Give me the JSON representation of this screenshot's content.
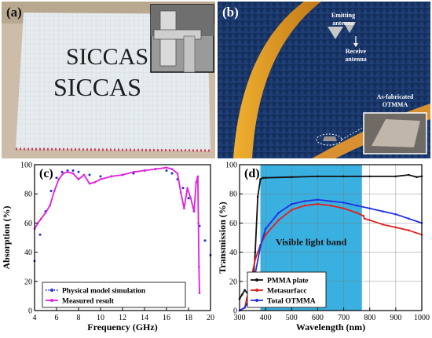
{
  "panel_a": {
    "tag": "(a)",
    "text_line1": "SICCAS",
    "text_line2": "SICCAS",
    "colors": {
      "background": "#d8c8b8",
      "sample": "#e8ecef",
      "grid": "#c8d4dc",
      "text": "#1e1e1e",
      "ruler": "#d04060"
    },
    "inset_icon": "caliper-photo"
  },
  "panel_b": {
    "tag": "(b)",
    "emit_label": [
      "Emitting",
      "antenna"
    ],
    "receive_label": [
      "Receive",
      "antenna"
    ],
    "fabricated_label": [
      "As-fabricated",
      "OTMMA"
    ],
    "colors": {
      "absorber": "#1a3a6a",
      "arch": "#e8a020",
      "sample": "#b0a898"
    },
    "inset_icon": "sample-photo"
  },
  "chart_data": [
    {
      "type": "line",
      "tag": "(c)",
      "xlabel": "Frequency (GHz)",
      "ylabel": "Absorption (%)",
      "xlim": [
        4,
        20
      ],
      "ylim": [
        0,
        100
      ],
      "xticks": [
        4,
        6,
        8,
        10,
        12,
        14,
        16,
        18,
        20
      ],
      "yticks": [
        0,
        20,
        40,
        60,
        80,
        100
      ],
      "legend_position": "bottom-left",
      "series": [
        {
          "name": "Physical model simulation",
          "style": "dots",
          "color": "#2030d0",
          "x": [
            4.0,
            4.5,
            5.0,
            5.5,
            6.0,
            6.5,
            7.0,
            7.5,
            8.0,
            9.0,
            10.0,
            11.0,
            12.0,
            13.0,
            14.0,
            15.0,
            16.0,
            16.5,
            17.0,
            17.5,
            18.0,
            18.5,
            19.0,
            19.5,
            20.0
          ],
          "y": [
            34,
            52,
            68,
            82,
            91,
            95,
            96,
            96,
            95,
            93,
            92,
            92,
            93,
            94,
            96,
            97,
            96,
            94,
            90,
            84,
            77,
            68,
            58,
            48,
            38
          ]
        },
        {
          "name": "Measured result",
          "style": "line-dots",
          "color": "#e020e0",
          "x": [
            4.0,
            4.3,
            4.6,
            5.0,
            5.4,
            5.8,
            6.2,
            6.6,
            7.0,
            7.5,
            8.0,
            8.5,
            9.0,
            9.5,
            10.0,
            11.0,
            12.0,
            13.0,
            14.0,
            15.0,
            16.0,
            16.5,
            17.0,
            17.3,
            17.6,
            17.9,
            18.2,
            18.5,
            18.7,
            18.85,
            18.9,
            18.95,
            19.0
          ],
          "y": [
            56,
            60,
            63,
            67,
            72,
            82,
            90,
            94,
            95,
            94,
            90,
            93,
            87,
            88,
            90,
            92,
            93,
            95,
            96,
            97,
            98,
            97,
            94,
            81,
            70,
            84,
            77,
            68,
            88,
            92,
            60,
            30,
            12
          ]
        }
      ]
    },
    {
      "type": "line",
      "tag": "(d)",
      "xlabel": "Wavelength (nm)",
      "ylabel": "Transmission (%)",
      "xlim": [
        300,
        1000
      ],
      "ylim": [
        0,
        100
      ],
      "xticks": [
        300,
        400,
        500,
        600,
        700,
        800,
        900,
        1000
      ],
      "yticks": [
        0,
        20,
        40,
        60,
        80,
        100
      ],
      "band": {
        "from": 380,
        "to": 770,
        "label": "Visible light band",
        "color": "#3ab0e0"
      },
      "legend_position": "bottom-left",
      "series": [
        {
          "name": "PMMA plate",
          "color": "#111111",
          "x": [
            300,
            310,
            320,
            330,
            340,
            350,
            360,
            370,
            380,
            390,
            400,
            500,
            600,
            700,
            800,
            900,
            950,
            980,
            1000
          ],
          "y": [
            8,
            11,
            14,
            12,
            9,
            14,
            40,
            78,
            90,
            91,
            91,
            91.5,
            92,
            92,
            92,
            92,
            93,
            91.5,
            92
          ]
        },
        {
          "name": "Metasurfacc",
          "color": "#e02020",
          "x": [
            300,
            320,
            340,
            360,
            380,
            400,
            450,
            500,
            550,
            600,
            650,
            700,
            750,
            775,
            780,
            800,
            850,
            900,
            950,
            1000
          ],
          "y": [
            0,
            2,
            18,
            35,
            45,
            52,
            62,
            69,
            72,
            73,
            72,
            70,
            67,
            65,
            63,
            62,
            59,
            57,
            55,
            52
          ]
        },
        {
          "name": "Total OTMMA",
          "color": "#2030e0",
          "x": [
            300,
            320,
            340,
            360,
            380,
            400,
            450,
            500,
            550,
            600,
            650,
            700,
            750,
            800,
            850,
            900,
            950,
            1000
          ],
          "y": [
            0,
            2,
            8,
            25,
            44,
            56,
            67,
            73,
            75,
            76,
            75,
            74,
            72,
            70,
            68,
            66,
            63,
            60
          ]
        }
      ]
    }
  ]
}
